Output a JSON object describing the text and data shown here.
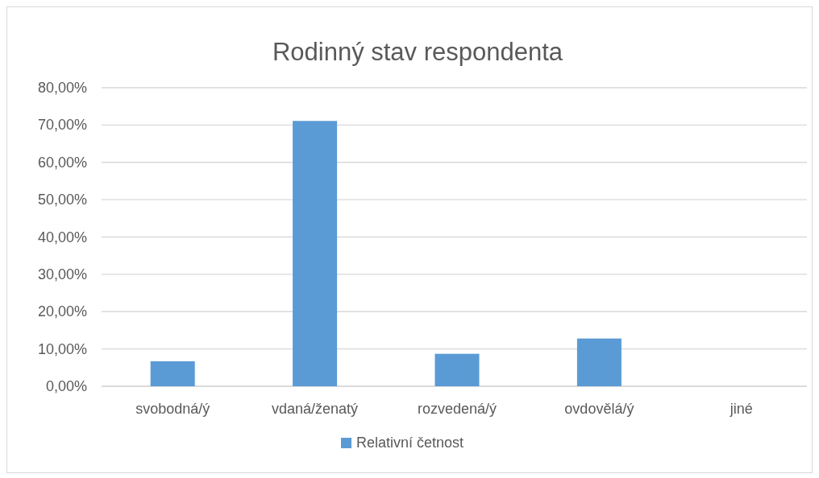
{
  "chart_data": {
    "type": "bar",
    "title": "Rodinný stav respondenta",
    "categories": [
      "svobodná/ý",
      "vdaná/ženatý",
      "rozvedená/ý",
      "ovdovělá/ý",
      "jiné"
    ],
    "series": [
      {
        "name": "Relativní četnost",
        "color": "#5b9bd5",
        "values": [
          6.7,
          71.1,
          8.7,
          12.8,
          0
        ]
      }
    ],
    "ylim": [
      0,
      80
    ],
    "yticks": [
      {
        "value": 0,
        "label": "0,00%"
      },
      {
        "value": 10,
        "label": "10,00%"
      },
      {
        "value": 20,
        "label": "20,00%"
      },
      {
        "value": 30,
        "label": "30,00%"
      },
      {
        "value": 40,
        "label": "40,00%"
      },
      {
        "value": 50,
        "label": "50,00%"
      },
      {
        "value": 60,
        "label": "60,00%"
      },
      {
        "value": 70,
        "label": "70,00%"
      },
      {
        "value": 80,
        "label": "80,00%"
      }
    ],
    "grid": "y",
    "legend": "bottom"
  }
}
